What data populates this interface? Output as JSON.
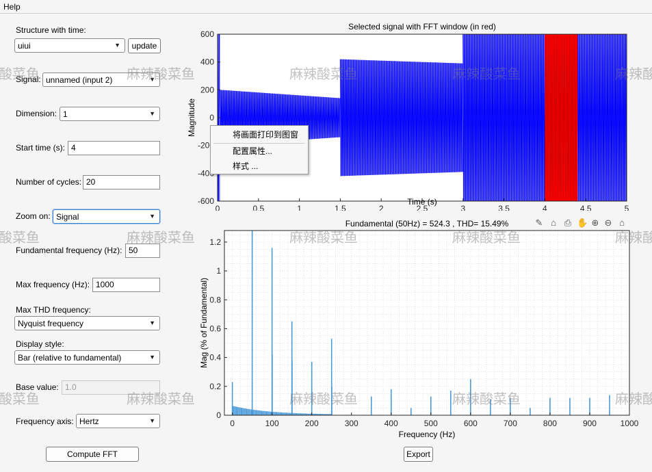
{
  "menu": {
    "help": "Help"
  },
  "controls": {
    "structure_label": "Structure with time:",
    "structure_value": "uiui",
    "update_button": "update",
    "signal_label": "Signal:",
    "signal_value": "unnamed (input 2)",
    "dimension_label": "Dimension:",
    "dimension_value": "1",
    "start_time_label": "Start time (s):",
    "start_time_value": "4",
    "cycles_label": "Number of cycles:",
    "cycles_value": "20",
    "zoom_label": "Zoom on:",
    "zoom_value": "Signal",
    "fundamental_label": "Fundamental frequency (Hz):",
    "fundamental_value": "50",
    "max_freq_label": "Max frequency (Hz):",
    "max_freq_value": "1000",
    "max_thd_label": "Max THD frequency:",
    "max_thd_value": "Nyquist frequency",
    "display_style_label": "Display style:",
    "display_style_value": "Bar (relative to fundamental)",
    "base_value_label": "Base value:",
    "base_value_placeholder": "1.0",
    "freq_axis_label": "Frequency axis:",
    "freq_axis_value": "Hertz",
    "compute_fft_button": "Compute FFT",
    "export_button": "Export"
  },
  "context_menu": {
    "items": [
      "将画面打印到图窗",
      "配置属性...",
      "样式 ..."
    ]
  },
  "watermark": "麻辣酸菜鱼",
  "axes_toolbar": [
    "brush-icon",
    "data-tips-icon",
    "export-icon",
    "pan-icon",
    "zoom-in-icon",
    "zoom-out-icon",
    "home-icon"
  ],
  "chart_data": [
    {
      "type": "line",
      "title": "Selected signal with FFT window (in red)",
      "xlabel": "Time (s)",
      "ylabel": "Magnitude",
      "xlim": [
        0,
        5
      ],
      "ylim": [
        -600,
        600
      ],
      "xticks": [
        "0",
        "0.5",
        "1",
        "1.5",
        "2",
        "2.5",
        "3",
        "3.5",
        "4",
        "4.5",
        "5"
      ],
      "yticks": [
        "-600",
        "-400",
        "-200",
        "0",
        "200",
        "400",
        "600"
      ],
      "envelope": [
        {
          "t0": 0,
          "t1": 0.03,
          "amp": 600
        },
        {
          "t0": 0.03,
          "t1": 1.5,
          "amp_start": 200,
          "amp_end": 140
        },
        {
          "t0": 1.5,
          "t1": 3.0,
          "amp_start": 420,
          "amp_end": 390
        },
        {
          "t0": 3.0,
          "t1": 5.0,
          "amp": 600
        }
      ],
      "fft_window": {
        "t_start": 4,
        "t_end": 4.4,
        "color": "#ff0000"
      },
      "signal_color": "#0000ff"
    },
    {
      "type": "bar",
      "title": "Fundamental (50Hz) = 524.3 , THD= 15.49%",
      "xlabel": "Frequency (Hz)",
      "ylabel": "Mag (% of Fundamental)",
      "xlim": [
        -20,
        1000
      ],
      "ylim": [
        0,
        1.28
      ],
      "xticks": [
        "0",
        "100",
        "200",
        "300",
        "400",
        "500",
        "600",
        "700",
        "800",
        "900",
        "1000"
      ],
      "yticks": [
        "0",
        "0.2",
        "0.4",
        "0.6",
        "0.8",
        "1",
        "1.2"
      ],
      "bar_color": "#4a9ad8",
      "harmonics": [
        {
          "f": 0,
          "v": 0.23
        },
        {
          "f": 50,
          "v": 1.28
        },
        {
          "f": 100,
          "v": 1.16
        },
        {
          "f": 100.5,
          "v": 0.42
        },
        {
          "f": 150,
          "v": 0.65
        },
        {
          "f": 150.5,
          "v": 0.38
        },
        {
          "f": 200,
          "v": 0.37
        },
        {
          "f": 250,
          "v": 0.53
        },
        {
          "f": 250.5,
          "v": 0.2
        },
        {
          "f": 350,
          "v": 0.13
        },
        {
          "f": 400,
          "v": 0.18
        },
        {
          "f": 450,
          "v": 0.05
        },
        {
          "f": 500,
          "v": 0.13
        },
        {
          "f": 550,
          "v": 0.17
        },
        {
          "f": 600,
          "v": 0.25
        },
        {
          "f": 650,
          "v": 0.11
        },
        {
          "f": 700,
          "v": 0.12
        },
        {
          "f": 750,
          "v": 0.05
        },
        {
          "f": 800,
          "v": 0.12
        },
        {
          "f": 850,
          "v": 0.12
        },
        {
          "f": 900,
          "v": 0.12
        },
        {
          "f": 950,
          "v": 0.14
        }
      ]
    }
  ]
}
